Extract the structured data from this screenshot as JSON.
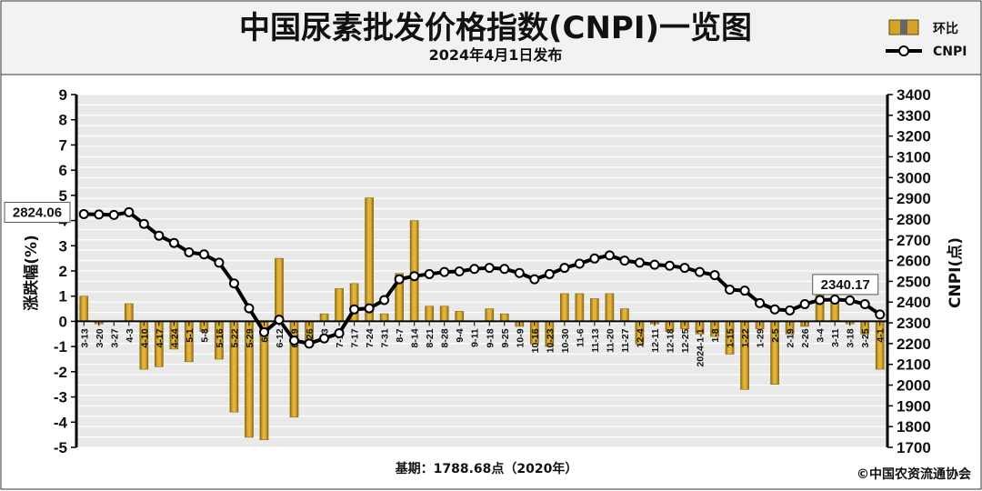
{
  "header": {
    "title": "中国尿素批发价格指数(CNPI)一览图",
    "subtitle": "2024年4月1日发布"
  },
  "legend": {
    "bar_label": "环比",
    "line_label": "CNPI"
  },
  "footer": {
    "base_note": "基期：1788.68点（2020年）",
    "copyright": "©中国农资流通协会"
  },
  "colors": {
    "bar_fill": "#D4A327",
    "bar_edge": "#8A6A10",
    "line": "#000000",
    "header_bg": "#F2F2F2",
    "plot_bg": "#E9E9E9"
  },
  "chart_data": {
    "type": "bar+line",
    "y_left": {
      "label": "涨跌幅(%)",
      "range": [
        -5,
        9
      ],
      "ticks": [
        "-5",
        "-4",
        "-3",
        "-2",
        "-1",
        "0",
        "1",
        "2",
        "3",
        "4",
        "5",
        "6",
        "7",
        "8",
        "9"
      ]
    },
    "y_right": {
      "label": "CNPI(点)",
      "range": [
        1700,
        3400
      ],
      "ticks": [
        "1700",
        "1800",
        "1900",
        "2000",
        "2100",
        "2200",
        "2300",
        "2400",
        "2500",
        "2600",
        "2700",
        "2800",
        "2900",
        "3000",
        "3100",
        "3200",
        "3300",
        "3400"
      ]
    },
    "x_labels": [
      "3-13",
      "3-20",
      "3-27",
      "4-3",
      "4-10",
      "4-17",
      "4-24",
      "5-1",
      "5-8",
      "5-16",
      "5-22",
      "5-29",
      "6-5",
      "6-12",
      "6-19",
      "6-26",
      "7-3",
      "7-10",
      "7-17",
      "7-24",
      "7-31",
      "8-7",
      "8-14",
      "8-21",
      "8-28",
      "9-4",
      "9-11",
      "9-18",
      "9-25",
      "10-9",
      "10-16",
      "10-23",
      "10-30",
      "11-6",
      "11-13",
      "11-20",
      "11-27",
      "12-4",
      "12-11",
      "12-18",
      "12-25",
      "2024-1-1",
      "1-8",
      "1-15",
      "1-22",
      "1-29",
      "2-5",
      "2-19",
      "2-26",
      "3-4",
      "3-11",
      "3-18",
      "3-25",
      "4-1"
    ],
    "series": [
      {
        "name": "环比",
        "kind": "bar",
        "values": [
          1.0,
          -0.1,
          0.0,
          0.7,
          -1.9,
          -1.8,
          -1.1,
          -1.6,
          -0.4,
          -1.5,
          -3.6,
          -4.6,
          -4.7,
          2.5,
          -3.8,
          -0.8,
          0.3,
          1.3,
          1.5,
          4.9,
          0.3,
          1.9,
          4.0,
          0.6,
          0.6,
          0.4,
          0.0,
          0.5,
          0.3,
          -0.2,
          -0.9,
          -1.0,
          1.1,
          1.1,
          0.9,
          1.1,
          0.5,
          -0.9,
          -0.1,
          -0.4,
          -0.3,
          -0.5,
          -0.6,
          -1.3,
          -2.7,
          -0.3,
          -2.5,
          -0.5,
          -0.2,
          1.2,
          0.9,
          -0.1,
          -0.5,
          -1.9
        ]
      },
      {
        "name": "CNPI",
        "kind": "line",
        "values": [
          2824.06,
          2822,
          2820,
          2833,
          2777,
          2720,
          2685,
          2640,
          2630,
          2590,
          2490,
          2370,
          2255,
          2315,
          2215,
          2200,
          2225,
          2250,
          2365,
          2370,
          2410,
          2510,
          2525,
          2535,
          2545,
          2548,
          2560,
          2565,
          2560,
          2540,
          2510,
          2535,
          2565,
          2585,
          2610,
          2625,
          2600,
          2590,
          2580,
          2575,
          2565,
          2545,
          2530,
          2460,
          2455,
          2395,
          2365,
          2360,
          2390,
          2410,
          2412,
          2408,
          2390,
          2340.17
        ]
      }
    ],
    "annotations": [
      {
        "text": "2824.06",
        "series": "CNPI",
        "index": 0
      },
      {
        "text": "2340.17",
        "series": "CNPI",
        "index": 53
      }
    ],
    "grid": true,
    "legend_position": "top-right"
  }
}
